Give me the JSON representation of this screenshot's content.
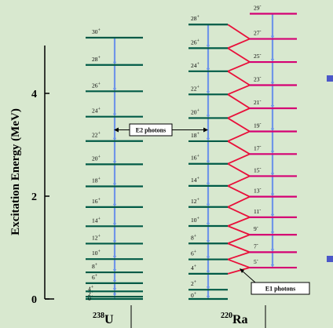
{
  "colors": {
    "background": "#d8e8cf",
    "even_level": "#005a46",
    "odd_level": "#d40073",
    "transition_e2": "#6f95e8",
    "transition_e1": "#e8103a",
    "axis": "#000000",
    "bullet": "#4b57c8"
  },
  "y_axis": {
    "title": "Excitation Energy (MeV)",
    "ticks": [
      "0",
      "2",
      "4"
    ],
    "tick_values": [
      0,
      2,
      4
    ],
    "range": [
      0,
      5.0
    ]
  },
  "callouts": {
    "e2": "E2 photons",
    "e1": "E1 photons"
  },
  "nuclei": [
    {
      "id": "u238",
      "mass": "238",
      "symbol": "U",
      "levels": [
        {
          "spin": "0",
          "parity": "+",
          "energy": 0.0
        },
        {
          "spin": "2",
          "parity": "+",
          "energy": 0.045
        },
        {
          "spin": "4",
          "parity": "+",
          "energy": 0.148
        },
        {
          "spin": "6",
          "parity": "+",
          "energy": 0.307
        },
        {
          "spin": "8",
          "parity": "+",
          "energy": 0.518
        },
        {
          "spin": "10",
          "parity": "+",
          "energy": 0.776
        },
        {
          "spin": "12",
          "parity": "+",
          "energy": 1.077
        },
        {
          "spin": "14",
          "parity": "+",
          "energy": 1.415
        },
        {
          "spin": "16",
          "parity": "+",
          "energy": 1.788
        },
        {
          "spin": "18",
          "parity": "+",
          "energy": 2.191
        },
        {
          "spin": "20",
          "parity": "+",
          "energy": 2.62
        },
        {
          "spin": "22",
          "parity": "+",
          "energy": 3.073
        },
        {
          "spin": "24",
          "parity": "+",
          "energy": 3.547
        },
        {
          "spin": "26",
          "parity": "+",
          "energy": 4.041
        },
        {
          "spin": "28",
          "parity": "+",
          "energy": 4.553
        },
        {
          "spin": "30",
          "parity": "+",
          "energy": 5.084
        }
      ]
    },
    {
      "id": "ra220",
      "mass": "220",
      "symbol": "Ra",
      "even_levels": [
        {
          "spin": "0",
          "parity": "+",
          "energy": 0.0
        },
        {
          "spin": "2",
          "parity": "+",
          "energy": 0.18
        },
        {
          "spin": "4",
          "parity": "+",
          "energy": 0.49
        },
        {
          "spin": "6",
          "parity": "+",
          "energy": 0.77
        },
        {
          "spin": "8",
          "parity": "+",
          "energy": 1.08
        },
        {
          "spin": "10",
          "parity": "+",
          "energy": 1.42
        },
        {
          "spin": "12",
          "parity": "+",
          "energy": 1.79
        },
        {
          "spin": "14",
          "parity": "+",
          "energy": 2.2
        },
        {
          "spin": "16",
          "parity": "+",
          "energy": 2.63
        },
        {
          "spin": "18",
          "parity": "+",
          "energy": 3.07
        },
        {
          "spin": "20",
          "parity": "+",
          "energy": 3.52
        },
        {
          "spin": "22",
          "parity": "+",
          "energy": 3.98
        },
        {
          "spin": "24",
          "parity": "+",
          "energy": 4.43
        },
        {
          "spin": "26",
          "parity": "+",
          "energy": 4.88
        },
        {
          "spin": "28",
          "parity": "+",
          "energy": 5.34
        }
      ],
      "odd_levels": [
        {
          "spin": "5",
          "parity": "-",
          "energy": 0.61
        },
        {
          "spin": "7",
          "parity": "-",
          "energy": 0.91
        },
        {
          "spin": "9",
          "parity": "-",
          "energy": 1.25
        },
        {
          "spin": "11",
          "parity": "-",
          "energy": 1.59
        },
        {
          "spin": "13",
          "parity": "-",
          "energy": 1.99
        },
        {
          "spin": "15",
          "parity": "-",
          "energy": 2.39
        },
        {
          "spin": "17",
          "parity": "-",
          "energy": 2.82
        },
        {
          "spin": "19",
          "parity": "-",
          "energy": 3.26
        },
        {
          "spin": "21",
          "parity": "-",
          "energy": 3.71
        },
        {
          "spin": "23",
          "parity": "-",
          "energy": 4.16
        },
        {
          "spin": "25",
          "parity": "-",
          "energy": 4.61
        },
        {
          "spin": "27",
          "parity": "-",
          "energy": 5.06
        },
        {
          "spin": "29",
          "parity": "-",
          "energy": 5.55
        }
      ]
    }
  ]
}
